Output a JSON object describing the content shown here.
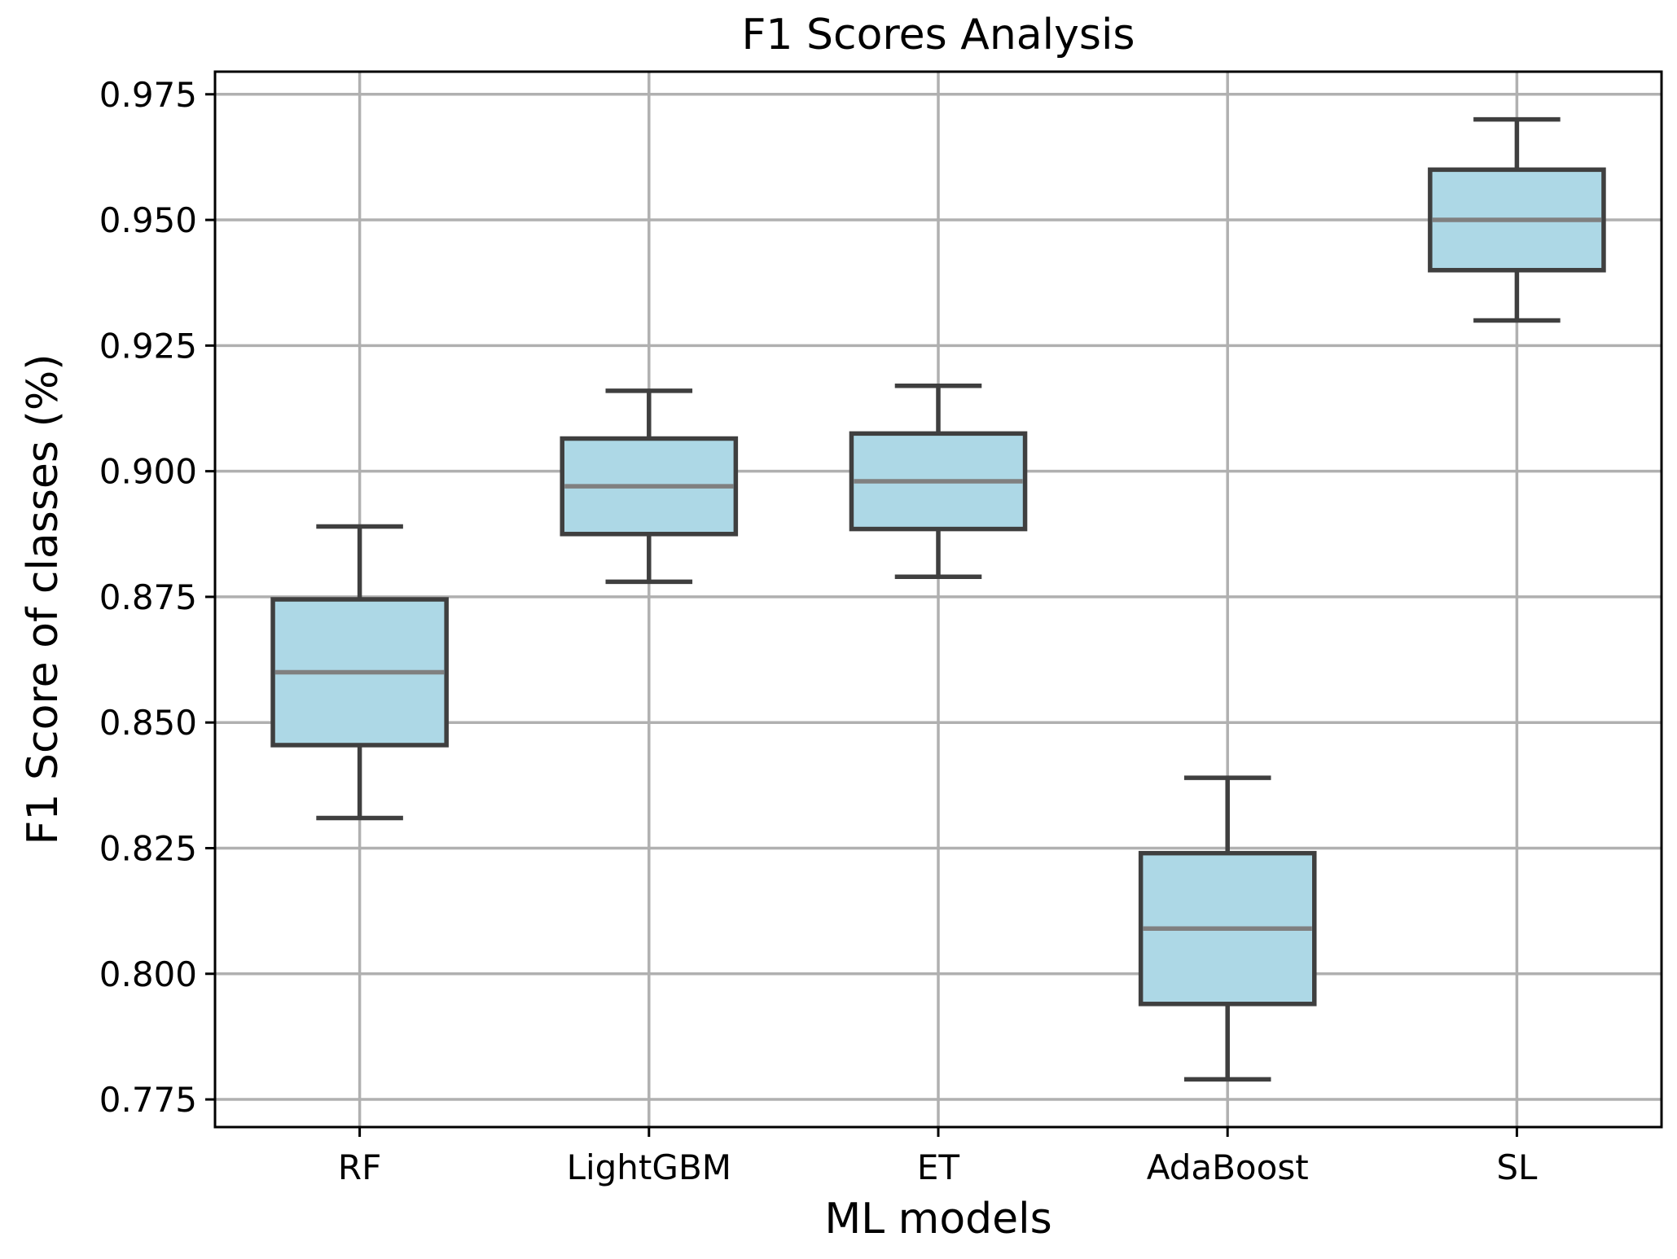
{
  "chart_data": {
    "type": "box",
    "title": "F1 Scores Analysis",
    "xlabel": "ML models",
    "ylabel": "F1 Score of classes (%)",
    "categories": [
      "RF",
      "LightGBM",
      "ET",
      "AdaBoost",
      "SL"
    ],
    "boxes": [
      {
        "name": "RF",
        "whislo": 0.831,
        "q1": 0.8455,
        "med": 0.86,
        "q3": 0.8745,
        "whishi": 0.889
      },
      {
        "name": "LightGBM",
        "whislo": 0.878,
        "q1": 0.8875,
        "med": 0.897,
        "q3": 0.9065,
        "whishi": 0.916
      },
      {
        "name": "ET",
        "whislo": 0.879,
        "q1": 0.8885,
        "med": 0.898,
        "q3": 0.9075,
        "whishi": 0.917
      },
      {
        "name": "AdaBoost",
        "whislo": 0.779,
        "q1": 0.794,
        "med": 0.809,
        "q3": 0.824,
        "whishi": 0.839
      },
      {
        "name": "SL",
        "whislo": 0.93,
        "q1": 0.94,
        "med": 0.95,
        "q3": 0.96,
        "whishi": 0.97
      }
    ],
    "ylim": [
      0.7695,
      0.9795
    ],
    "yticks": [
      0.775,
      0.8,
      0.825,
      0.85,
      0.875,
      0.9,
      0.925,
      0.95,
      0.975
    ],
    "ytick_labels": [
      "0.775",
      "0.800",
      "0.825",
      "0.850",
      "0.875",
      "0.900",
      "0.925",
      "0.950",
      "0.975"
    ],
    "grid": true,
    "colors": {
      "box_fill": "#add8e6",
      "box_edge": "#3f3f3f",
      "median": "#808080",
      "grid": "#b0b0b0"
    }
  }
}
